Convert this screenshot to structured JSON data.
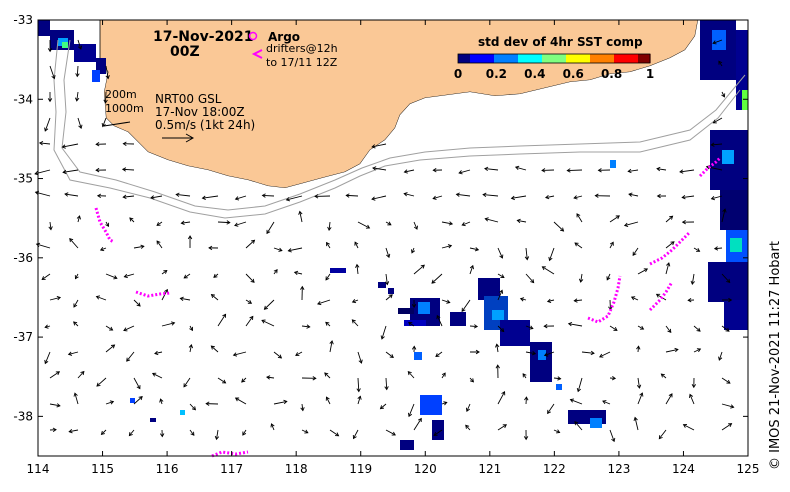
{
  "title": {
    "date": "17-Nov-2021",
    "hour": "00Z"
  },
  "legend_argo": {
    "label": "Argo",
    "drifters": "drifters@12h",
    "drifters_to": "to 17/11 12Z"
  },
  "info": {
    "depth1": "200m",
    "depth2": "1000m",
    "product": "NRT00 GSL",
    "time": "17-Nov 18:00Z",
    "scale": "0.5m/s (1kt 24h)"
  },
  "colorbar": {
    "title": "std dev of 4hr SST comp",
    "ticks": [
      "0",
      "0.2",
      "0.4",
      "0.6",
      "0.8",
      "1"
    ],
    "colors": [
      "#000080",
      "#0000ff",
      "#0080ff",
      "#00ffff",
      "#80ff80",
      "#ffff00",
      "#ff8000",
      "#ff0000",
      "#800000"
    ]
  },
  "axes": {
    "lon_ticks": [
      "114",
      "115",
      "116",
      "117",
      "118",
      "119",
      "120",
      "121",
      "122",
      "123",
      "124",
      "125"
    ],
    "lat_ticks": [
      "-33",
      "-34",
      "-35",
      "-36",
      "-37",
      "-38"
    ],
    "lon_range": [
      114,
      125
    ],
    "lat_range": [
      -38.5,
      -33
    ]
  },
  "credit": "© IMOS 21-Nov-2021 11:27 Hobart",
  "colors": {
    "land": "#fac896",
    "drifter": "#ff00ff",
    "isobath": "#a0a0a0",
    "arrow": "#000000"
  }
}
